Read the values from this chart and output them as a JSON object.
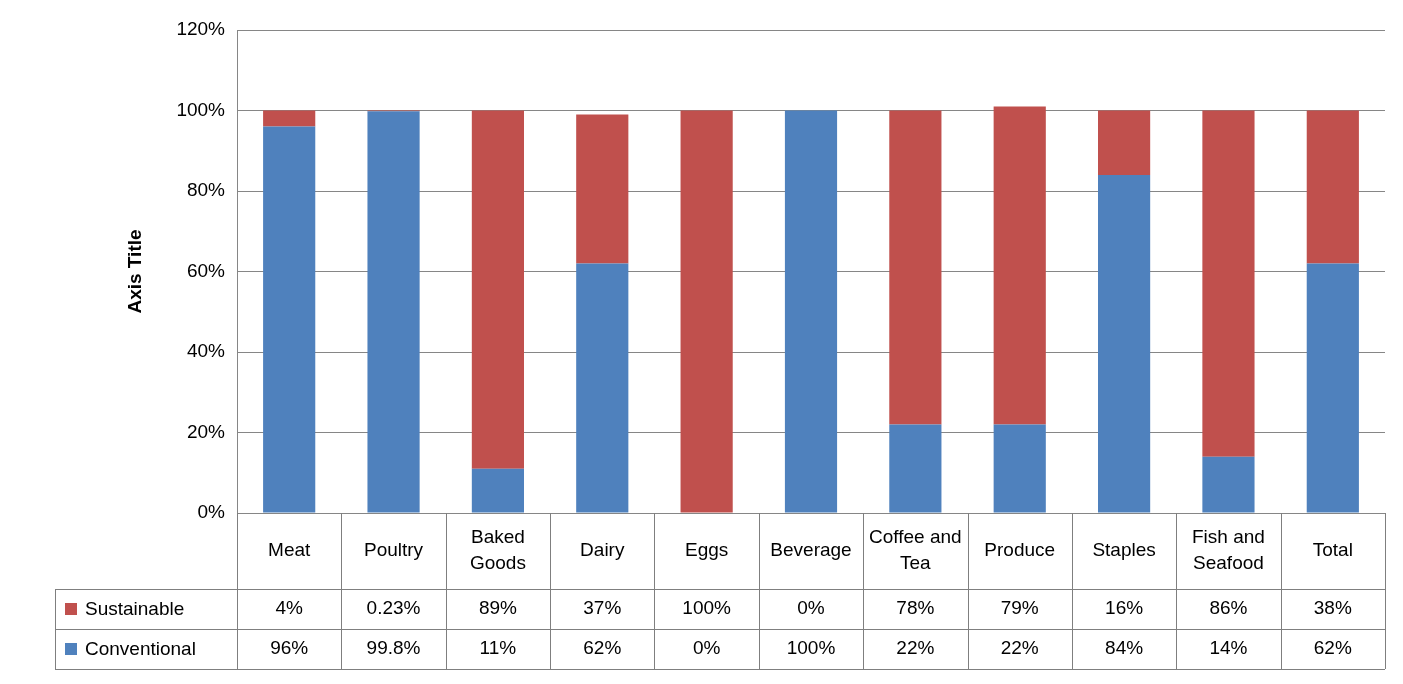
{
  "chart_data": {
    "type": "bar",
    "stacked": true,
    "ylabel": "Axis Title",
    "categories": [
      "Meat",
      "Poultry",
      "Baked Goods",
      "Dairy",
      "Eggs",
      "Beverage",
      "Coffee and Tea",
      "Produce",
      "Staples",
      "Fish and Seafood",
      "Total"
    ],
    "series": [
      {
        "name": "Conventional",
        "color": "#4f81bd",
        "values": [
          96,
          99.8,
          11,
          62,
          0,
          100,
          22,
          22,
          84,
          14,
          62
        ],
        "value_labels": [
          "96%",
          "99.8%",
          "11%",
          "62%",
          "0%",
          "100%",
          "22%",
          "22%",
          "84%",
          "14%",
          "62%"
        ]
      },
      {
        "name": "Sustainable",
        "color": "#c0504d",
        "values": [
          4,
          0.23,
          89,
          37,
          100,
          0,
          78,
          79,
          16,
          86,
          38
        ],
        "value_labels": [
          "4%",
          "0.23%",
          "89%",
          "37%",
          "100%",
          "0%",
          "78%",
          "79%",
          "16%",
          "86%",
          "38%"
        ]
      }
    ],
    "ylim": [
      0,
      120
    ],
    "yticks": [
      {
        "value": 0,
        "label": "0%"
      },
      {
        "value": 20,
        "label": "20%"
      },
      {
        "value": 40,
        "label": "40%"
      },
      {
        "value": 60,
        "label": "60%"
      },
      {
        "value": 80,
        "label": "80%"
      },
      {
        "value": 100,
        "label": "100%"
      },
      {
        "value": 120,
        "label": "120%"
      }
    ],
    "grid": "y",
    "legend": "bottom"
  }
}
